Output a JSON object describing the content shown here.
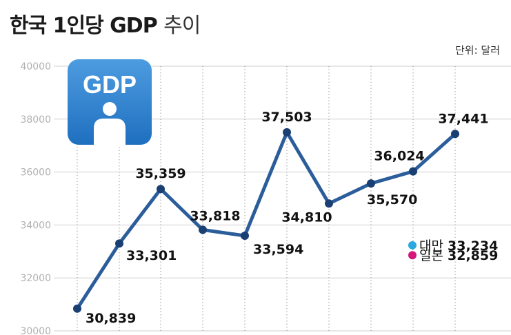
{
  "title_bold": "한국 1인당 GDP",
  "title_light": "추이",
  "unit": "단위: 달러",
  "icon_text": "GDP",
  "chart_data": {
    "type": "line",
    "title": "한국 1인당 GDP 추이",
    "ylim": [
      30000,
      40000
    ],
    "yticks": [
      30000,
      32000,
      34000,
      36000,
      38000,
      40000
    ],
    "grid": true,
    "series": [
      {
        "values": [
          30839,
          33301,
          35359,
          33818,
          33594,
          37503,
          34810,
          35570,
          36024,
          37441
        ],
        "labels": [
          "30,839",
          "33,301",
          "35,359",
          "33,818",
          "33,594",
          "37,503",
          "34,810",
          "35,570",
          "36,024",
          "37,441"
        ],
        "color": "#2b5d9b"
      }
    ],
    "others": [
      {
        "name": "대만",
        "value": 33234,
        "label": "33,234",
        "color": "#2aa8e0"
      },
      {
        "name": "일본",
        "value": 32859,
        "label": "32,859",
        "color": "#d6167a"
      }
    ]
  }
}
